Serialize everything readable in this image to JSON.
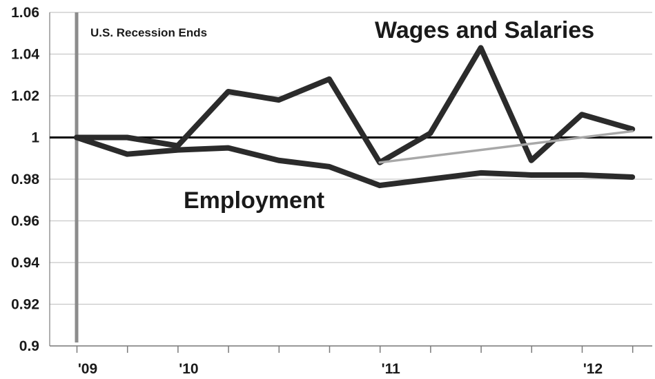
{
  "chart_data": {
    "type": "line",
    "x": [
      "'09",
      "",
      "'10",
      "",
      "",
      "",
      "'11",
      "",
      "",
      "",
      "'12",
      ""
    ],
    "x_tick_labels": [
      "'09",
      "'10",
      "'11",
      "'12"
    ],
    "ylim": [
      0.9,
      1.06
    ],
    "y_ticks": [
      0.9,
      0.92,
      0.94,
      0.96,
      0.98,
      1,
      1.02,
      1.04,
      1.06
    ],
    "y_tick_labels": [
      "0.9",
      "0.92",
      "0.94",
      "0.96",
      "0.98",
      "1",
      "1.02",
      "1.04",
      "1.06"
    ],
    "grid": true,
    "reference_line": 1,
    "series": [
      {
        "name": "Wages and Salaries",
        "values": [
          1.0,
          1.0,
          0.996,
          1.022,
          1.018,
          1.028,
          0.988,
          1.002,
          1.043,
          0.989,
          1.011,
          1.004
        ],
        "color": "#2b2b2b"
      },
      {
        "name": "Employment",
        "values": [
          1.0,
          0.992,
          0.994,
          0.995,
          0.989,
          0.986,
          0.977,
          0.98,
          0.983,
          0.982,
          0.982,
          0.981
        ],
        "color": "#2b2b2b"
      }
    ],
    "trend_line": {
      "from_index": 6,
      "to_index": 11,
      "values": [
        0.988,
        1.003
      ],
      "color": "#a8a8a8"
    },
    "annotation": {
      "text": "U.S. Recession Ends",
      "x_index": 0
    }
  },
  "colors": {
    "grid": "#c8c8c8",
    "axis": "#7a7a7a",
    "reference": "#000000",
    "recession_marker": "#8c8c8c"
  }
}
